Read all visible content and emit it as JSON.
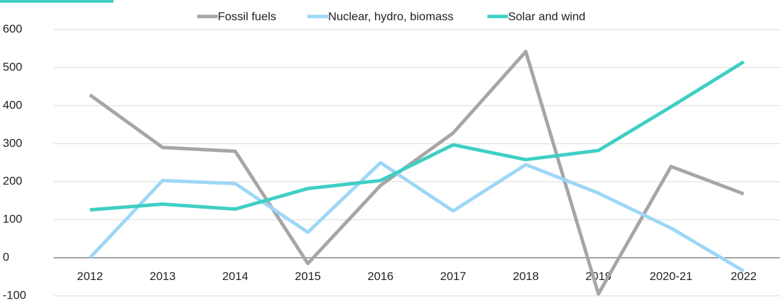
{
  "chart_data": {
    "type": "line",
    "categories": [
      "2012",
      "2013",
      "2014",
      "2015",
      "2016",
      "2017",
      "2018",
      "2019",
      "2020-21",
      "2022"
    ],
    "series": [
      {
        "name": "Fossil fuels",
        "color": "#a6a6a6",
        "values": [
          428,
          290,
          280,
          -15,
          190,
          328,
          542,
          -95,
          240,
          168
        ]
      },
      {
        "name": "Nuclear, hydro, biomass",
        "color": "#9dd7f7",
        "values": [
          0,
          203,
          195,
          67,
          250,
          123,
          245,
          170,
          78,
          -35
        ]
      },
      {
        "name": "Solar and wind",
        "color": "#3fcfc4",
        "values": [
          126,
          141,
          128,
          182,
          203,
          297,
          258,
          282,
          397,
          515
        ]
      }
    ],
    "ylim": [
      -100,
      600
    ],
    "yticks": [
      -100,
      0,
      100,
      200,
      300,
      400,
      500,
      600
    ],
    "grid": true,
    "legend": "top"
  }
}
